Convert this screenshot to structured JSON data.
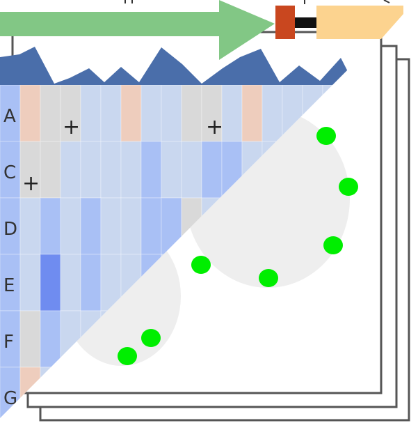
{
  "figure": {
    "row_labels": [
      "A",
      "C",
      "D",
      "E",
      "F",
      "G"
    ],
    "plus_marker": "+",
    "stacked_pages": 3
  },
  "colors": {
    "page_border": "#555555",
    "arrow_green": "#82c785",
    "box_red": "#c9471f",
    "box_orange": "#fcd38f",
    "linker_black": "#111111",
    "mountain_blue": "#4a6eaa",
    "dot_green": "#00ee00",
    "blob_gray": "#eeeeee",
    "heat_gray": "#d9d9d9",
    "heat_peach": "#eecdbd",
    "heat_light_blue": "#c9d7ef",
    "heat_mid_blue": "#a9c0f5",
    "heat_blue": "#8ea8f7",
    "heat_dark_blue": "#6f8cf0"
  },
  "heatmap": {
    "rows": [
      [
        "blue",
        "peach",
        "gray",
        "gray",
        "light",
        "light",
        "peach",
        "light",
        "light",
        "gray",
        "gray",
        "light",
        "peach",
        "light",
        "light",
        "light",
        "light",
        "light"
      ],
      [
        "blue",
        "gray",
        "gray",
        "light",
        "light",
        "light",
        "light",
        "mid",
        "light",
        "light",
        "mid",
        "mid",
        "light",
        "light",
        "light",
        "light",
        "light",
        "light"
      ],
      [
        "blue",
        "light",
        "mid",
        "light",
        "blue",
        "light",
        "light",
        "mid",
        "mid",
        "gray",
        "light",
        "light",
        "light",
        "light",
        "light",
        "light",
        "light",
        "light"
      ],
      [
        "blue",
        "light",
        "dark",
        "light",
        "mid",
        "light",
        "light",
        "mid",
        "light",
        "light",
        "light",
        "light",
        "light",
        "light",
        "light",
        "light",
        "light",
        "light"
      ],
      [
        "blue",
        "gray",
        "mid",
        "light",
        "light",
        "light",
        "light",
        "light",
        "light",
        "light",
        "light",
        "light",
        "light",
        "light",
        "light",
        "light",
        "light",
        "light"
      ],
      [
        "blue",
        "peach",
        "light",
        "light",
        "light",
        "light",
        "light",
        "light",
        "light",
        "light",
        "light",
        "light",
        "light",
        "light",
        "light",
        "light",
        "light",
        "light"
      ]
    ],
    "plus_cells": [
      [
        0,
        2
      ],
      [
        0,
        9
      ],
      [
        1,
        0
      ]
    ]
  }
}
